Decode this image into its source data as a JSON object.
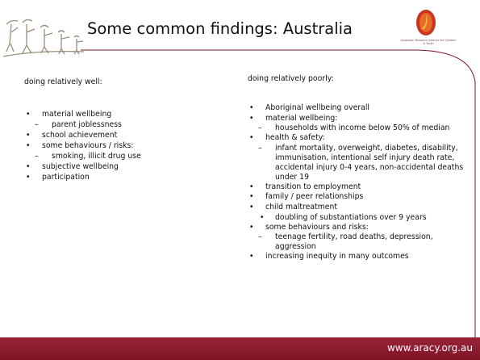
{
  "header": {
    "title": "Some common findings: Australia",
    "logo_text": "Australian Research Alliance for Children & Youth"
  },
  "left": {
    "heading": "doing relatively well:",
    "items": [
      {
        "text": "material wellbeing",
        "sub": [
          "parent joblessness"
        ]
      },
      {
        "text": "school achievement",
        "sub": []
      },
      {
        "text": "some behaviours / risks:",
        "sub": [
          "smoking, illicit drug use"
        ]
      },
      {
        "text": "subjective wellbeing",
        "sub": []
      },
      {
        "text": "participation",
        "sub": []
      }
    ]
  },
  "right": {
    "heading": "doing relatively poorly:",
    "items": [
      {
        "text": "Aboriginal wellbeing overall",
        "sub": []
      },
      {
        "text": "material wellbeing:",
        "sub": [
          "households with income below 50% of median"
        ]
      },
      {
        "text": "health & safety:",
        "sub": [
          "infant mortality, overweight, diabetes, disability, immunisation, intentional self injury death rate, accidental injury 0-4 years, non-accidental deaths under 19"
        ]
      },
      {
        "text": "transition to employment",
        "sub": []
      },
      {
        "text": "family / peer relationships",
        "sub": []
      },
      {
        "text": "child maltreatment",
        "dot_sub": [
          "doubling of substantiations over 9 years"
        ],
        "sub": []
      },
      {
        "text": "some behaviours and risks:",
        "sub": [
          "teenage fertility, road deaths, depression, aggression"
        ]
      },
      {
        "text": "increasing inequity in many outcomes",
        "sub": []
      }
    ]
  },
  "footer": {
    "url": "www.aracy.org.au"
  }
}
